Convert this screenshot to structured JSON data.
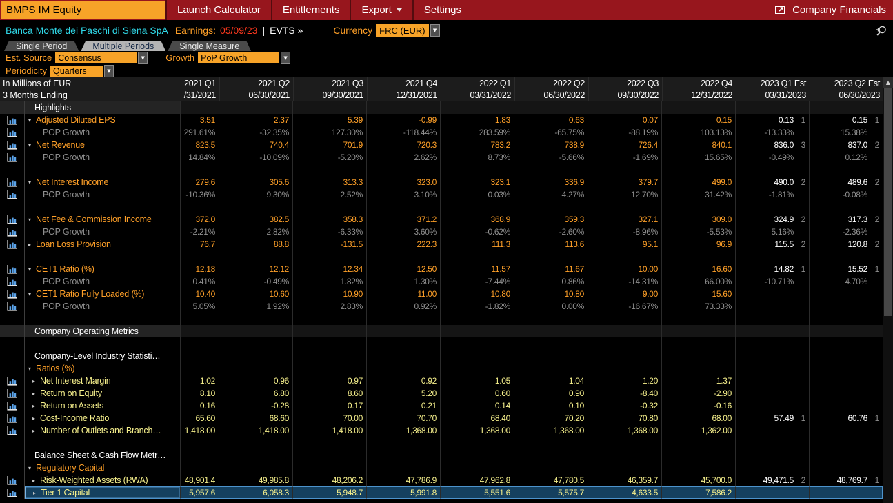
{
  "colors": {
    "menubar_red": "#97161d",
    "accent_orange": "#ffa028",
    "box_orange": "#f7a328",
    "company_cyan": "#2fd6e6",
    "earnings_red": "#ff391e",
    "data_yellow": "#f6f08c",
    "growth_gray": "#8f8f8f",
    "selected_row_blue": "#15405f"
  },
  "menu_bar": {
    "ticker": "BMPS IM Equity",
    "items": [
      "Launch Calculator",
      "Entitlements",
      "Export",
      "Settings"
    ],
    "right_label": "Company Financials"
  },
  "info_bar": {
    "company": "Banca Monte dei Paschi di Siena SpA",
    "earnings_label": "Earnings:",
    "earnings_date": "05/09/23",
    "divider": "|",
    "evts": "EVTS »",
    "currency_label": "Currency",
    "currency_value": "FRC (EUR)"
  },
  "tabs": [
    {
      "label": "Single Period",
      "selected": false
    },
    {
      "label": "Multiple Periods",
      "selected": true
    },
    {
      "label": "Single Measure",
      "selected": false
    }
  ],
  "controls": {
    "est_source_label": "Est. Source",
    "est_source_value": "Consensus",
    "growth_label": "Growth",
    "growth_value": "PoP Growth",
    "periodicity_label": "Periodicity",
    "periodicity_value": "Quarters"
  },
  "table": {
    "unit_label": "In Millions of EUR",
    "period_label": "3 Months Ending",
    "columns": [
      {
        "quarter": "2021 Q1",
        "date": "/31/2021",
        "est": false
      },
      {
        "quarter": "2021 Q2",
        "date": "06/30/2021",
        "est": false
      },
      {
        "quarter": "2021 Q3",
        "date": "09/30/2021",
        "est": false
      },
      {
        "quarter": "2021 Q4",
        "date": "12/31/2021",
        "est": false
      },
      {
        "quarter": "2022 Q1",
        "date": "03/31/2022",
        "est": false
      },
      {
        "quarter": "2022 Q2",
        "date": "06/30/2022",
        "est": false
      },
      {
        "quarter": "2022 Q3",
        "date": "09/30/2022",
        "est": false
      },
      {
        "quarter": "2022 Q4",
        "date": "12/31/2022",
        "est": false
      },
      {
        "quarter": "2023 Q1 Est",
        "date": "03/31/2023",
        "est": true
      },
      {
        "quarter": "2023 Q2 Est",
        "date": "06/30/2023",
        "est": true
      }
    ],
    "rows": [
      {
        "type": "section",
        "label": "Highlights"
      },
      {
        "type": "metric",
        "arrow": "down",
        "icon": true,
        "label": "Adjusted Diluted EPS",
        "values": [
          "3.51",
          "2.37",
          "5.39",
          "-0.99",
          "1.83",
          "0.63",
          "0.07",
          "0.15",
          "0.13",
          "0.15"
        ],
        "counts": [
          "",
          "",
          "",
          "",
          "",
          "",
          "",
          "",
          "1",
          "1"
        ]
      },
      {
        "type": "pop",
        "icon": true,
        "label": "POP Growth",
        "values": [
          "291.61%",
          "-32.35%",
          "127.30%",
          "-118.44%",
          "283.59%",
          "-65.75%",
          "-88.19%",
          "103.13%",
          "-13.33%",
          "15.38%"
        ]
      },
      {
        "type": "metric",
        "arrow": "down",
        "icon": true,
        "label": "Net Revenue",
        "values": [
          "823.5",
          "740.4",
          "701.9",
          "720.3",
          "783.2",
          "738.9",
          "726.4",
          "840.1",
          "836.0",
          "837.0"
        ],
        "counts": [
          "",
          "",
          "",
          "",
          "",
          "",
          "",
          "",
          "3",
          "2"
        ]
      },
      {
        "type": "pop",
        "icon": true,
        "label": "POP Growth",
        "values": [
          "14.84%",
          "-10.09%",
          "-5.20%",
          "2.62%",
          "8.73%",
          "-5.66%",
          "-1.69%",
          "15.65%",
          "-0.49%",
          "0.12%"
        ]
      },
      {
        "type": "blank"
      },
      {
        "type": "metric",
        "arrow": "down",
        "icon": true,
        "label": "Net Interest Income",
        "values": [
          "279.6",
          "305.6",
          "313.3",
          "323.0",
          "323.1",
          "336.9",
          "379.7",
          "499.0",
          "490.0",
          "489.6"
        ],
        "counts": [
          "",
          "",
          "",
          "",
          "",
          "",
          "",
          "",
          "2",
          "2"
        ]
      },
      {
        "type": "pop",
        "icon": true,
        "label": "POP Growth",
        "values": [
          "-10.36%",
          "9.30%",
          "2.52%",
          "3.10%",
          "0.03%",
          "4.27%",
          "12.70%",
          "31.42%",
          "-1.81%",
          "-0.08%"
        ]
      },
      {
        "type": "blank"
      },
      {
        "type": "metric",
        "arrow": "down",
        "icon": true,
        "label": "Net Fee & Commission Income",
        "values": [
          "372.0",
          "382.5",
          "358.3",
          "371.2",
          "368.9",
          "359.3",
          "327.1",
          "309.0",
          "324.9",
          "317.3"
        ],
        "counts": [
          "",
          "",
          "",
          "",
          "",
          "",
          "",
          "",
          "2",
          "2"
        ]
      },
      {
        "type": "pop",
        "icon": true,
        "label": "POP Growth",
        "values": [
          "-2.21%",
          "2.82%",
          "-6.33%",
          "3.60%",
          "-0.62%",
          "-2.60%",
          "-8.96%",
          "-5.53%",
          "5.16%",
          "-2.36%"
        ]
      },
      {
        "type": "metric",
        "arrow": "right",
        "icon": true,
        "label": "Loan Loss Provision",
        "values": [
          "76.7",
          "88.8",
          "-131.5",
          "222.3",
          "111.3",
          "113.6",
          "95.1",
          "96.9",
          "115.5",
          "120.8"
        ],
        "counts": [
          "",
          "",
          "",
          "",
          "",
          "",
          "",
          "",
          "2",
          "2"
        ]
      },
      {
        "type": "blank"
      },
      {
        "type": "metric",
        "arrow": "down",
        "icon": true,
        "label": "CET1 Ratio (%)",
        "values": [
          "12.18",
          "12.12",
          "12.34",
          "12.50",
          "11.57",
          "11.67",
          "10.00",
          "16.60",
          "14.82",
          "15.52"
        ],
        "counts": [
          "",
          "",
          "",
          "",
          "",
          "",
          "",
          "",
          "1",
          "1"
        ]
      },
      {
        "type": "pop",
        "icon": true,
        "label": "POP Growth",
        "values": [
          "0.41%",
          "-0.49%",
          "1.82%",
          "1.30%",
          "-7.44%",
          "0.86%",
          "-14.31%",
          "66.00%",
          "-10.71%",
          "4.70%"
        ]
      },
      {
        "type": "metric",
        "arrow": "down",
        "icon": true,
        "label": "CET1 Ratio Fully Loaded (%)",
        "values": [
          "10.40",
          "10.60",
          "10.90",
          "11.00",
          "10.80",
          "10.80",
          "9.00",
          "15.60",
          "",
          ""
        ]
      },
      {
        "type": "pop",
        "icon": true,
        "label": "POP Growth",
        "values": [
          "5.05%",
          "1.92%",
          "2.83%",
          "0.92%",
          "-1.82%",
          "0.00%",
          "-16.67%",
          "73.33%",
          "",
          ""
        ]
      },
      {
        "type": "blank"
      },
      {
        "type": "section",
        "label": "Company Operating Metrics"
      },
      {
        "type": "blank"
      },
      {
        "type": "plain",
        "label": "Company-Level Industry Statisti…"
      },
      {
        "type": "group",
        "arrow": "down",
        "label": "Ratios (%)"
      },
      {
        "type": "sub",
        "arrow": "right",
        "icon": true,
        "label": "Net Interest Margin",
        "values": [
          "1.02",
          "0.96",
          "0.97",
          "0.92",
          "1.05",
          "1.04",
          "1.20",
          "1.37",
          "",
          ""
        ]
      },
      {
        "type": "sub",
        "arrow": "right",
        "icon": true,
        "label": "Return on Equity",
        "values": [
          "8.10",
          "6.80",
          "8.60",
          "5.20",
          "0.60",
          "0.90",
          "-8.40",
          "-2.90",
          "",
          ""
        ]
      },
      {
        "type": "sub",
        "arrow": "right",
        "icon": true,
        "label": "Return on Assets",
        "values": [
          "0.16",
          "-0.28",
          "0.17",
          "0.21",
          "0.14",
          "0.10",
          "-0.32",
          "-0.16",
          "",
          ""
        ]
      },
      {
        "type": "sub",
        "arrow": "right",
        "icon": true,
        "label": "Cost-Income Ratio",
        "values": [
          "65.60",
          "68.60",
          "70.00",
          "70.70",
          "68.40",
          "70.20",
          "70.80",
          "68.00",
          "57.49",
          "60.76"
        ],
        "counts": [
          "",
          "",
          "",
          "",
          "",
          "",
          "",
          "",
          "1",
          "1"
        ]
      },
      {
        "type": "sub",
        "arrow": "right",
        "icon": true,
        "label": "Number of Outlets and Branch…",
        "values": [
          "1,418.00",
          "1,418.00",
          "1,418.00",
          "1,368.00",
          "1,368.00",
          "1,368.00",
          "1,368.00",
          "1,362.00",
          "",
          ""
        ]
      },
      {
        "type": "blank"
      },
      {
        "type": "plain",
        "label": "Balance Sheet & Cash Flow Metr…"
      },
      {
        "type": "group",
        "arrow": "down",
        "label": "Regulatory Capital"
      },
      {
        "type": "sub",
        "arrow": "right",
        "icon": true,
        "label": "Risk-Weighted Assets (RWA)",
        "values": [
          "48,901.4",
          "49,985.8",
          "48,206.2",
          "47,786.9",
          "47,962.8",
          "47,780.5",
          "46,359.7",
          "45,700.0",
          "49,471.5",
          "48,769.7"
        ],
        "counts": [
          "",
          "",
          "",
          "",
          "",
          "",
          "",
          "",
          "2",
          "1"
        ]
      },
      {
        "type": "sub",
        "arrow": "right",
        "icon": true,
        "label": "Tier 1 Capital",
        "selected": true,
        "values": [
          "5,957.6",
          "6,058.3",
          "5,948.7",
          "5,991.8",
          "5,551.6",
          "5,575.7",
          "4,633.5",
          "7,586.2",
          "",
          ""
        ]
      }
    ]
  }
}
